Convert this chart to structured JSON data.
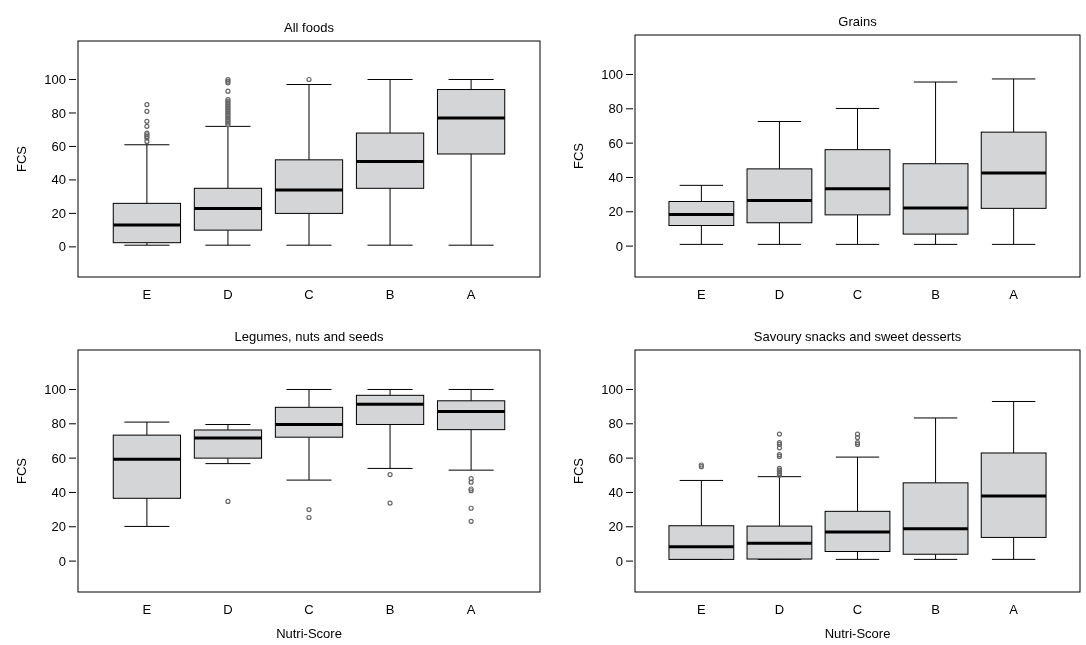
{
  "chart_data": [
    {
      "type": "box",
      "title": "All foods",
      "ylabel": "FCS",
      "categories": [
        "E",
        "D",
        "C",
        "B",
        "A"
      ],
      "ylim": [
        -18,
        123
      ],
      "yticks": [
        0,
        20,
        40,
        60,
        80,
        100
      ],
      "color": "#d4d5d7",
      "boxes": [
        {
          "low": 1,
          "q1": 2.5,
          "median": 13,
          "q3": 26,
          "high": 61,
          "outliers": [
            63,
            65,
            66,
            67,
            68,
            72,
            75,
            81,
            85
          ]
        },
        {
          "low": 1,
          "q1": 10,
          "median": 23,
          "q3": 35,
          "high": 72,
          "outliers": [
            73,
            74,
            75,
            76,
            77,
            78,
            79,
            80,
            81,
            82,
            83,
            84,
            85,
            86,
            87,
            88,
            93,
            98,
            99,
            100
          ]
        },
        {
          "low": 1,
          "q1": 20,
          "median": 34,
          "q3": 52,
          "high": 97,
          "outliers": [
            100
          ]
        },
        {
          "low": 1,
          "q1": 35,
          "median": 51,
          "q3": 68,
          "high": 100
        },
        {
          "low": 1,
          "q1": 55.5,
          "median": 77,
          "q3": 94,
          "high": 100
        }
      ]
    },
    {
      "type": "box",
      "title": "Grains",
      "ylabel": "FCS",
      "categories": [
        "E",
        "D",
        "C",
        "B",
        "A"
      ],
      "ylim": [
        -18,
        123
      ],
      "yticks": [
        0,
        20,
        40,
        60,
        80,
        100
      ],
      "color": "#d4d5d7",
      "boxes": [
        {
          "low": 1,
          "q1": 12,
          "median": 18.4,
          "q3": 26,
          "high": 35.4
        },
        {
          "low": 1,
          "q1": 13.6,
          "median": 26.6,
          "q3": 45,
          "high": 72.6
        },
        {
          "low": 1,
          "q1": 18.2,
          "median": 33.4,
          "q3": 56.2,
          "high": 80.2
        },
        {
          "low": 1,
          "q1": 7,
          "median": 22.2,
          "q3": 48,
          "high": 95.6
        },
        {
          "low": 1,
          "q1": 22,
          "median": 42.6,
          "q3": 66.4,
          "high": 97.4
        }
      ]
    },
    {
      "type": "box",
      "title": "Legumes, nuts and seeds",
      "ylabel": "FCS",
      "xlabel": "Nutri-Score",
      "categories": [
        "E",
        "D",
        "C",
        "B",
        "A"
      ],
      "ylim": [
        -18,
        123
      ],
      "yticks": [
        0,
        20,
        40,
        60,
        80,
        100
      ],
      "color": "#d4d5d7",
      "boxes": [
        {
          "low": 20.2,
          "q1": 36.6,
          "median": 59.4,
          "q3": 73.4,
          "high": 81
        },
        {
          "low": 56.8,
          "q1": 60,
          "median": 71.8,
          "q3": 76.4,
          "high": 79.6,
          "outliers": [
            34.8
          ]
        },
        {
          "low": 47.2,
          "q1": 72.2,
          "median": 79.6,
          "q3": 89.6,
          "high": 100,
          "outliers": [
            30,
            25.4
          ]
        },
        {
          "low": 54,
          "q1": 79.6,
          "median": 91.4,
          "q3": 96.6,
          "high": 100,
          "outliers": [
            50.4,
            33.8
          ]
        },
        {
          "low": 53,
          "q1": 76.6,
          "median": 87.2,
          "q3": 93.4,
          "high": 100,
          "outliers": [
            48,
            46,
            42,
            41,
            30.8,
            23.2
          ]
        }
      ]
    },
    {
      "type": "box",
      "title": "Savoury snacks and sweet desserts",
      "ylabel": "FCS",
      "xlabel": "Nutri-Score",
      "categories": [
        "E",
        "D",
        "C",
        "B",
        "A"
      ],
      "ylim": [
        -18,
        123
      ],
      "yticks": [
        0,
        20,
        40,
        60,
        80,
        100
      ],
      "color": "#d4d5d7",
      "boxes": [
        {
          "low": 1,
          "q1": 1,
          "median": 8.4,
          "q3": 20.6,
          "high": 47,
          "outliers": [
            55,
            56
          ]
        },
        {
          "low": 1,
          "q1": 1.2,
          "median": 10.4,
          "q3": 20.4,
          "high": 49.2,
          "outliers": [
            50,
            51,
            52,
            53,
            54,
            61,
            62,
            66,
            68,
            69,
            74
          ]
        },
        {
          "low": 1,
          "q1": 5.6,
          "median": 17,
          "q3": 29,
          "high": 60.6,
          "outliers": [
            68,
            69,
            72,
            74
          ]
        },
        {
          "low": 1,
          "q1": 4,
          "median": 18.8,
          "q3": 45.6,
          "high": 83.4
        },
        {
          "low": 1,
          "q1": 13.8,
          "median": 38,
          "q3": 63,
          "high": 93
        }
      ]
    }
  ]
}
